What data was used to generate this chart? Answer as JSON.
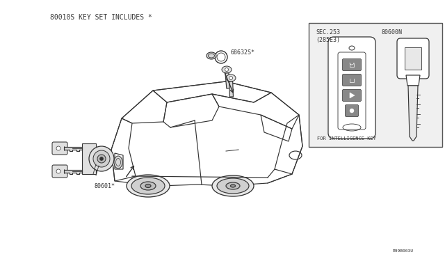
{
  "bg_color": "#ffffff",
  "line_color": "#333333",
  "title_text": "80010S KEY SET INCLUDES *",
  "label_686": "68632S*",
  "label_806": "80601*",
  "label_r99": "R99B003U",
  "inset_sec": "SEC.253",
  "inset_285": "(285E3)",
  "inset_b06": "80600N",
  "inset_label": "FOR INTELLIGENCE KEY",
  "font_mono": "monospace",
  "font_size_label": 7.0,
  "font_size_small": 6.0,
  "font_size_tiny": 5.0
}
